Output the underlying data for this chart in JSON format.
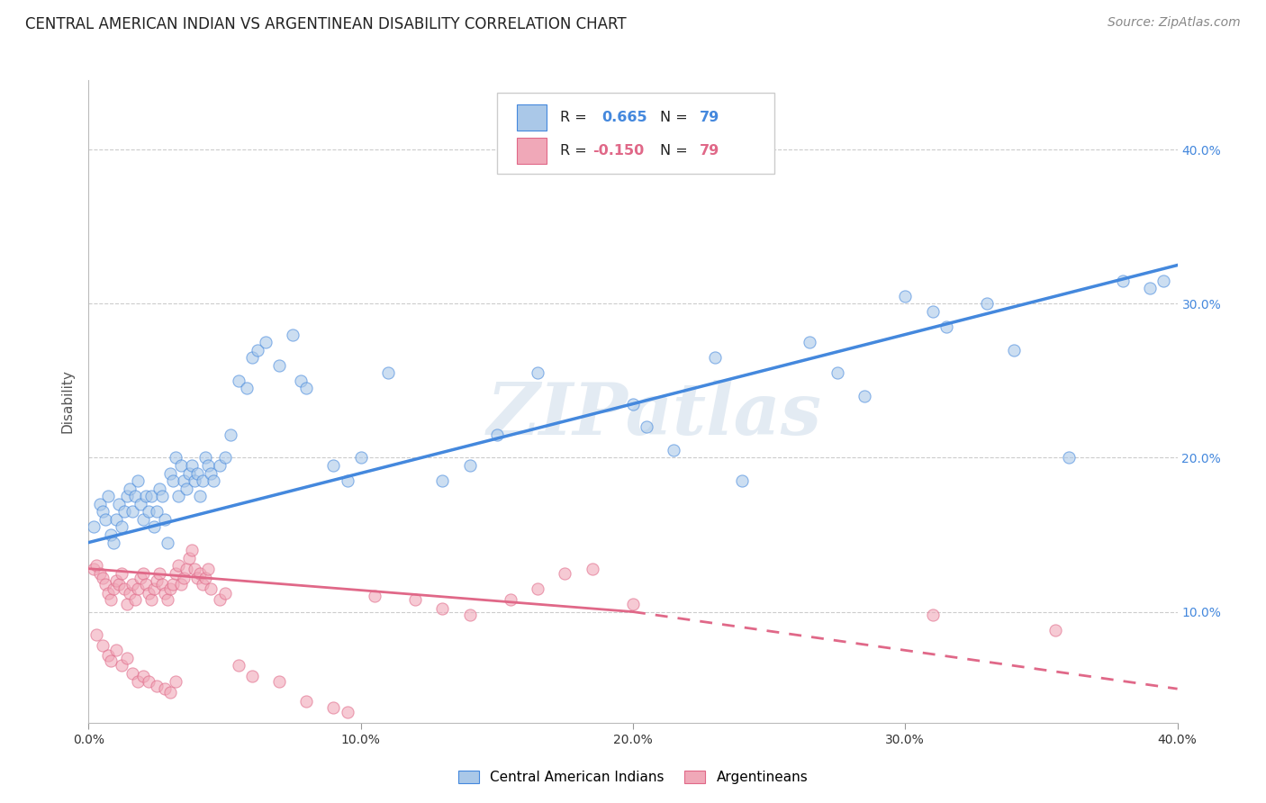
{
  "title": "CENTRAL AMERICAN INDIAN VS ARGENTINEAN DISABILITY CORRELATION CHART",
  "source": "Source: ZipAtlas.com",
  "ylabel": "Disability",
  "watermark": "ZIPatlas",
  "x_min": 0.0,
  "x_max": 0.4,
  "y_min": 0.028,
  "y_max": 0.445,
  "x_ticks": [
    0.0,
    0.1,
    0.2,
    0.3,
    0.4
  ],
  "x_tick_labels": [
    "0.0%",
    "10.0%",
    "20.0%",
    "30.0%",
    "40.0%"
  ],
  "y_ticks": [
    0.1,
    0.2,
    0.3,
    0.4
  ],
  "y_tick_labels": [
    "10.0%",
    "20.0%",
    "30.0%",
    "40.0%"
  ],
  "blue_color": "#aac8e8",
  "pink_color": "#f0a8b8",
  "blue_line_color": "#4488dd",
  "pink_line_color": "#e06888",
  "grid_color": "#cccccc",
  "blue_scatter": [
    [
      0.002,
      0.155
    ],
    [
      0.004,
      0.17
    ],
    [
      0.005,
      0.165
    ],
    [
      0.006,
      0.16
    ],
    [
      0.007,
      0.175
    ],
    [
      0.008,
      0.15
    ],
    [
      0.009,
      0.145
    ],
    [
      0.01,
      0.16
    ],
    [
      0.011,
      0.17
    ],
    [
      0.012,
      0.155
    ],
    [
      0.013,
      0.165
    ],
    [
      0.014,
      0.175
    ],
    [
      0.015,
      0.18
    ],
    [
      0.016,
      0.165
    ],
    [
      0.017,
      0.175
    ],
    [
      0.018,
      0.185
    ],
    [
      0.019,
      0.17
    ],
    [
      0.02,
      0.16
    ],
    [
      0.021,
      0.175
    ],
    [
      0.022,
      0.165
    ],
    [
      0.023,
      0.175
    ],
    [
      0.024,
      0.155
    ],
    [
      0.025,
      0.165
    ],
    [
      0.026,
      0.18
    ],
    [
      0.027,
      0.175
    ],
    [
      0.028,
      0.16
    ],
    [
      0.029,
      0.145
    ],
    [
      0.03,
      0.19
    ],
    [
      0.031,
      0.185
    ],
    [
      0.032,
      0.2
    ],
    [
      0.033,
      0.175
    ],
    [
      0.034,
      0.195
    ],
    [
      0.035,
      0.185
    ],
    [
      0.036,
      0.18
    ],
    [
      0.037,
      0.19
    ],
    [
      0.038,
      0.195
    ],
    [
      0.039,
      0.185
    ],
    [
      0.04,
      0.19
    ],
    [
      0.041,
      0.175
    ],
    [
      0.042,
      0.185
    ],
    [
      0.043,
      0.2
    ],
    [
      0.044,
      0.195
    ],
    [
      0.045,
      0.19
    ],
    [
      0.046,
      0.185
    ],
    [
      0.048,
      0.195
    ],
    [
      0.05,
      0.2
    ],
    [
      0.052,
      0.215
    ],
    [
      0.055,
      0.25
    ],
    [
      0.058,
      0.245
    ],
    [
      0.06,
      0.265
    ],
    [
      0.062,
      0.27
    ],
    [
      0.065,
      0.275
    ],
    [
      0.07,
      0.26
    ],
    [
      0.075,
      0.28
    ],
    [
      0.078,
      0.25
    ],
    [
      0.08,
      0.245
    ],
    [
      0.09,
      0.195
    ],
    [
      0.095,
      0.185
    ],
    [
      0.1,
      0.2
    ],
    [
      0.11,
      0.255
    ],
    [
      0.13,
      0.185
    ],
    [
      0.14,
      0.195
    ],
    [
      0.15,
      0.215
    ],
    [
      0.165,
      0.255
    ],
    [
      0.2,
      0.235
    ],
    [
      0.205,
      0.22
    ],
    [
      0.215,
      0.205
    ],
    [
      0.23,
      0.265
    ],
    [
      0.24,
      0.185
    ],
    [
      0.265,
      0.275
    ],
    [
      0.275,
      0.255
    ],
    [
      0.285,
      0.24
    ],
    [
      0.3,
      0.305
    ],
    [
      0.31,
      0.295
    ],
    [
      0.315,
      0.285
    ],
    [
      0.33,
      0.3
    ],
    [
      0.34,
      0.27
    ],
    [
      0.36,
      0.2
    ],
    [
      0.38,
      0.315
    ],
    [
      0.39,
      0.31
    ],
    [
      0.395,
      0.315
    ]
  ],
  "pink_scatter": [
    [
      0.002,
      0.128
    ],
    [
      0.003,
      0.13
    ],
    [
      0.004,
      0.125
    ],
    [
      0.005,
      0.122
    ],
    [
      0.006,
      0.118
    ],
    [
      0.007,
      0.112
    ],
    [
      0.008,
      0.108
    ],
    [
      0.009,
      0.115
    ],
    [
      0.01,
      0.12
    ],
    [
      0.011,
      0.118
    ],
    [
      0.012,
      0.125
    ],
    [
      0.013,
      0.115
    ],
    [
      0.014,
      0.105
    ],
    [
      0.015,
      0.112
    ],
    [
      0.016,
      0.118
    ],
    [
      0.017,
      0.108
    ],
    [
      0.018,
      0.115
    ],
    [
      0.019,
      0.122
    ],
    [
      0.02,
      0.125
    ],
    [
      0.021,
      0.118
    ],
    [
      0.022,
      0.112
    ],
    [
      0.023,
      0.108
    ],
    [
      0.024,
      0.115
    ],
    [
      0.025,
      0.12
    ],
    [
      0.026,
      0.125
    ],
    [
      0.027,
      0.118
    ],
    [
      0.028,
      0.112
    ],
    [
      0.029,
      0.108
    ],
    [
      0.03,
      0.115
    ],
    [
      0.031,
      0.118
    ],
    [
      0.032,
      0.125
    ],
    [
      0.033,
      0.13
    ],
    [
      0.034,
      0.118
    ],
    [
      0.035,
      0.122
    ],
    [
      0.036,
      0.128
    ],
    [
      0.037,
      0.135
    ],
    [
      0.038,
      0.14
    ],
    [
      0.039,
      0.128
    ],
    [
      0.04,
      0.122
    ],
    [
      0.041,
      0.125
    ],
    [
      0.042,
      0.118
    ],
    [
      0.043,
      0.122
    ],
    [
      0.044,
      0.128
    ],
    [
      0.045,
      0.115
    ],
    [
      0.048,
      0.108
    ],
    [
      0.05,
      0.112
    ],
    [
      0.003,
      0.085
    ],
    [
      0.005,
      0.078
    ],
    [
      0.007,
      0.072
    ],
    [
      0.008,
      0.068
    ],
    [
      0.01,
      0.075
    ],
    [
      0.012,
      0.065
    ],
    [
      0.014,
      0.07
    ],
    [
      0.016,
      0.06
    ],
    [
      0.018,
      0.055
    ],
    [
      0.02,
      0.058
    ],
    [
      0.022,
      0.055
    ],
    [
      0.025,
      0.052
    ],
    [
      0.028,
      0.05
    ],
    [
      0.03,
      0.048
    ],
    [
      0.032,
      0.055
    ],
    [
      0.055,
      0.065
    ],
    [
      0.06,
      0.058
    ],
    [
      0.07,
      0.055
    ],
    [
      0.08,
      0.042
    ],
    [
      0.09,
      0.038
    ],
    [
      0.095,
      0.035
    ],
    [
      0.105,
      0.11
    ],
    [
      0.12,
      0.108
    ],
    [
      0.13,
      0.102
    ],
    [
      0.14,
      0.098
    ],
    [
      0.155,
      0.108
    ],
    [
      0.165,
      0.115
    ],
    [
      0.175,
      0.125
    ],
    [
      0.185,
      0.128
    ],
    [
      0.2,
      0.105
    ],
    [
      0.31,
      0.098
    ],
    [
      0.355,
      0.088
    ]
  ],
  "blue_line": [
    [
      0.0,
      0.145
    ],
    [
      0.4,
      0.325
    ]
  ],
  "pink_line_solid": [
    [
      0.0,
      0.128
    ],
    [
      0.2,
      0.1
    ]
  ],
  "pink_line_dashed": [
    [
      0.2,
      0.1
    ],
    [
      0.4,
      0.05
    ]
  ],
  "background_color": "#ffffff",
  "title_fontsize": 12,
  "source_fontsize": 10,
  "label_fontsize": 11,
  "tick_fontsize": 10,
  "marker_size": 90,
  "marker_alpha": 0.6,
  "marker_linewidth": 0.8
}
